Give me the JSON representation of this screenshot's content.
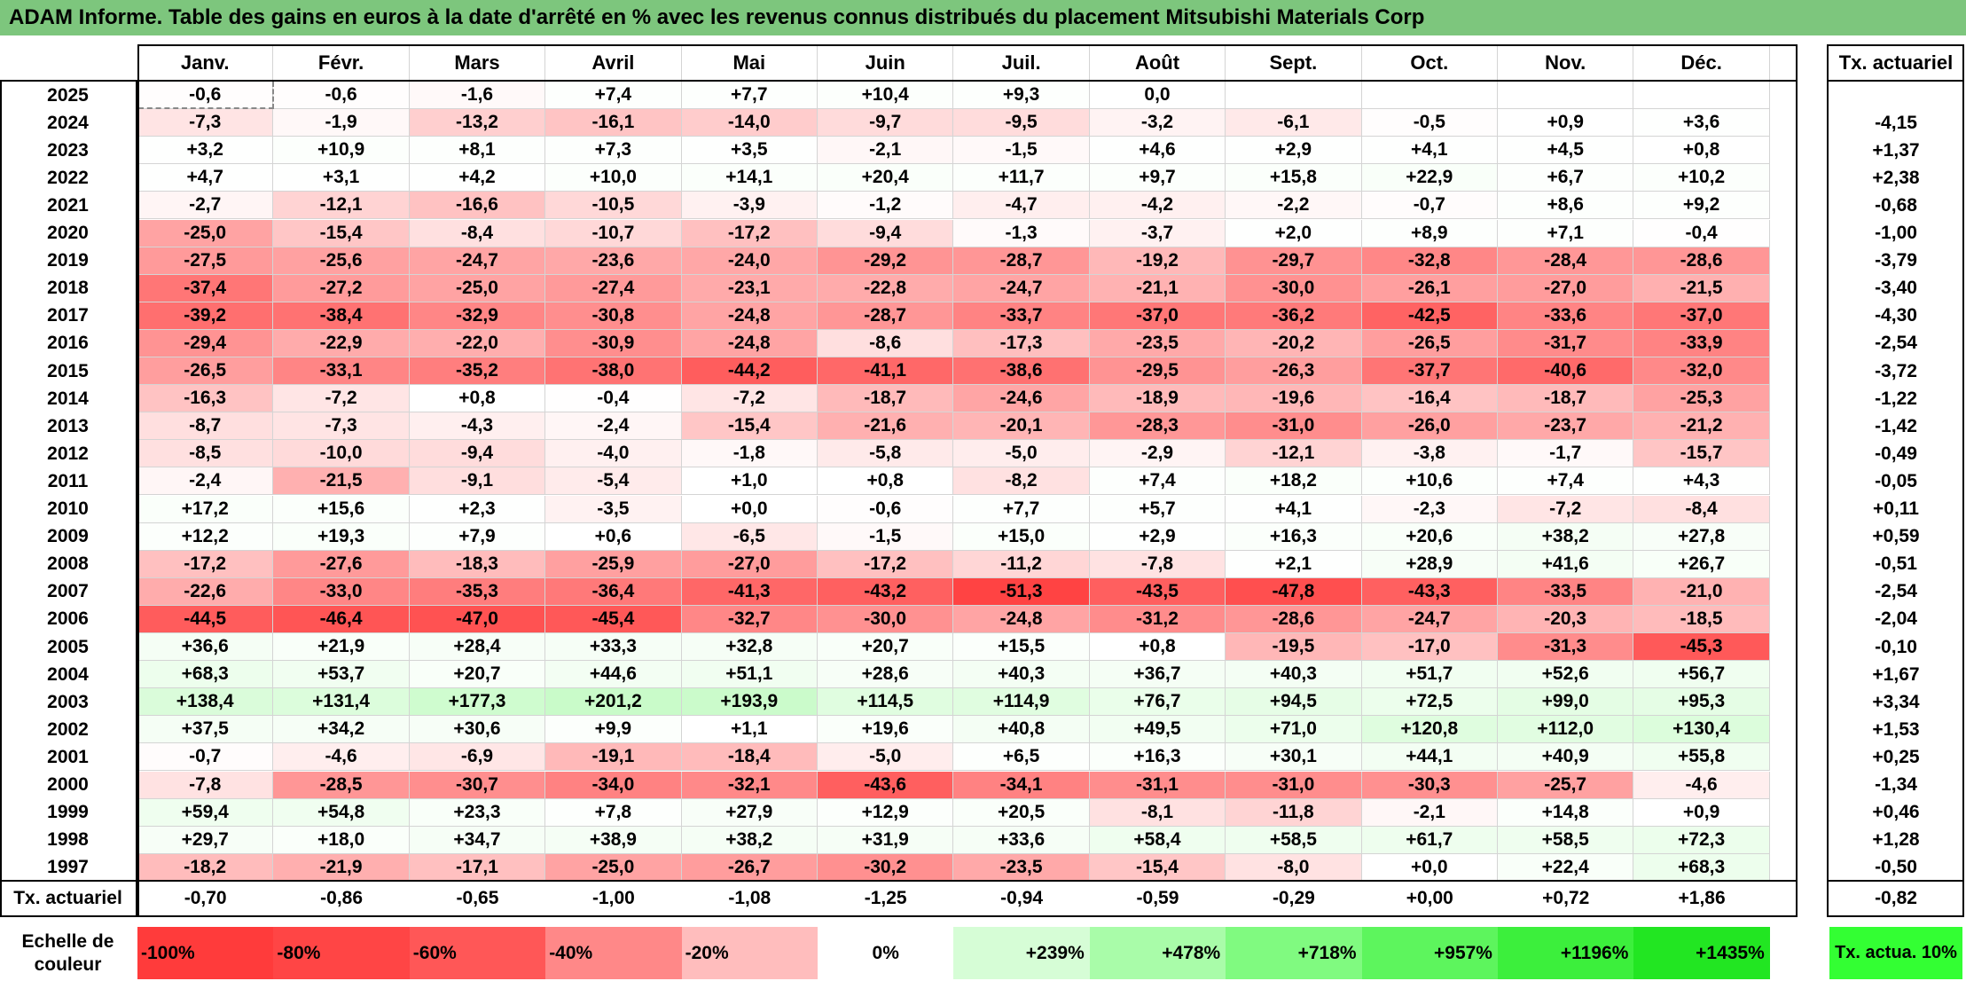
{
  "title": "ADAM Informe. Table des gains en euros à la date d'arrêté en % avec les revenus connus distribués du placement Mitsubishi Materials Corp",
  "months": [
    "Janv.",
    "Févr.",
    "Mars",
    "Avril",
    "Mai",
    "Juin",
    "Juil.",
    "Août",
    "Sept.",
    "Oct.",
    "Nov.",
    "Déc."
  ],
  "annual_header": "Tx. actuariel",
  "rows": [
    {
      "year": "2025",
      "values": [
        "-0,6",
        "-0,6",
        "-1,6",
        "+7,4",
        "+7,7",
        "+10,4",
        "+9,3",
        "0,0",
        "",
        "",
        "",
        ""
      ],
      "annual": ""
    },
    {
      "year": "2024",
      "values": [
        "-7,3",
        "-1,9",
        "-13,2",
        "-16,1",
        "-14,0",
        "-9,7",
        "-9,5",
        "-3,2",
        "-6,1",
        "-0,5",
        "+0,9",
        "+3,6"
      ],
      "annual": "-4,15"
    },
    {
      "year": "2023",
      "values": [
        "+3,2",
        "+10,9",
        "+8,1",
        "+7,3",
        "+3,5",
        "-2,1",
        "-1,5",
        "+4,6",
        "+2,9",
        "+4,1",
        "+4,5",
        "+0,8"
      ],
      "annual": "+1,37"
    },
    {
      "year": "2022",
      "values": [
        "+4,7",
        "+3,1",
        "+4,2",
        "+10,0",
        "+14,1",
        "+20,4",
        "+11,7",
        "+9,7",
        "+15,8",
        "+22,9",
        "+6,7",
        "+10,2"
      ],
      "annual": "+2,38"
    },
    {
      "year": "2021",
      "values": [
        "-2,7",
        "-12,1",
        "-16,6",
        "-10,5",
        "-3,9",
        "-1,2",
        "-4,7",
        "-4,2",
        "-2,2",
        "-0,7",
        "+8,6",
        "+9,2"
      ],
      "annual": "-0,68"
    },
    {
      "year": "2020",
      "values": [
        "-25,0",
        "-15,4",
        "-8,4",
        "-10,7",
        "-17,2",
        "-9,4",
        "-1,3",
        "-3,7",
        "+2,0",
        "+8,9",
        "+7,1",
        "-0,4"
      ],
      "annual": "-1,00"
    },
    {
      "year": "2019",
      "values": [
        "-27,5",
        "-25,6",
        "-24,7",
        "-23,6",
        "-24,0",
        "-29,2",
        "-28,7",
        "-19,2",
        "-29,7",
        "-32,8",
        "-28,4",
        "-28,6"
      ],
      "annual": "-3,79"
    },
    {
      "year": "2018",
      "values": [
        "-37,4",
        "-27,2",
        "-25,0",
        "-27,4",
        "-23,1",
        "-22,8",
        "-24,7",
        "-21,1",
        "-30,0",
        "-26,1",
        "-27,0",
        "-21,5"
      ],
      "annual": "-3,40"
    },
    {
      "year": "2017",
      "values": [
        "-39,2",
        "-38,4",
        "-32,9",
        "-30,8",
        "-24,8",
        "-28,7",
        "-33,7",
        "-37,0",
        "-36,2",
        "-42,5",
        "-33,6",
        "-37,0"
      ],
      "annual": "-4,30"
    },
    {
      "year": "2016",
      "values": [
        "-29,4",
        "-22,9",
        "-22,0",
        "-30,9",
        "-24,8",
        "-8,6",
        "-17,3",
        "-23,5",
        "-20,2",
        "-26,5",
        "-31,7",
        "-33,9"
      ],
      "annual": "-2,54"
    },
    {
      "year": "2015",
      "values": [
        "-26,5",
        "-33,1",
        "-35,2",
        "-38,0",
        "-44,2",
        "-41,1",
        "-38,6",
        "-29,5",
        "-26,3",
        "-37,7",
        "-40,6",
        "-32,0"
      ],
      "annual": "-3,72"
    },
    {
      "year": "2014",
      "values": [
        "-16,3",
        "-7,2",
        "+0,8",
        "-0,4",
        "-7,2",
        "-18,7",
        "-24,6",
        "-18,9",
        "-19,6",
        "-16,4",
        "-18,7",
        "-25,3"
      ],
      "annual": "-1,22"
    },
    {
      "year": "2013",
      "values": [
        "-8,7",
        "-7,3",
        "-4,3",
        "-2,4",
        "-15,4",
        "-21,6",
        "-20,1",
        "-28,3",
        "-31,0",
        "-26,0",
        "-23,7",
        "-21,2"
      ],
      "annual": "-1,42"
    },
    {
      "year": "2012",
      "values": [
        "-8,5",
        "-10,0",
        "-9,4",
        "-4,0",
        "-1,8",
        "-5,8",
        "-5,0",
        "-2,9",
        "-12,1",
        "-3,8",
        "-1,7",
        "-15,7"
      ],
      "annual": "-0,49"
    },
    {
      "year": "2011",
      "values": [
        "-2,4",
        "-21,5",
        "-9,1",
        "-5,4",
        "+1,0",
        "+0,8",
        "-8,2",
        "+7,4",
        "+18,2",
        "+10,6",
        "+7,4",
        "+4,3"
      ],
      "annual": "-0,05"
    },
    {
      "year": "2010",
      "values": [
        "+17,2",
        "+15,6",
        "+2,3",
        "-3,5",
        "+0,0",
        "-0,6",
        "+7,7",
        "+5,7",
        "+4,1",
        "-2,3",
        "-7,2",
        "-8,4"
      ],
      "annual": "+0,11"
    },
    {
      "year": "2009",
      "values": [
        "+12,2",
        "+19,3",
        "+7,9",
        "+0,6",
        "-6,5",
        "-1,5",
        "+15,0",
        "+2,9",
        "+16,3",
        "+20,6",
        "+38,2",
        "+27,8"
      ],
      "annual": "+0,59"
    },
    {
      "year": "2008",
      "values": [
        "-17,2",
        "-27,6",
        "-18,3",
        "-25,9",
        "-27,0",
        "-17,2",
        "-11,2",
        "-7,8",
        "+2,1",
        "+28,9",
        "+41,6",
        "+26,7"
      ],
      "annual": "-0,51"
    },
    {
      "year": "2007",
      "values": [
        "-22,6",
        "-33,0",
        "-35,3",
        "-36,4",
        "-41,3",
        "-43,2",
        "-51,3",
        "-43,5",
        "-47,8",
        "-43,3",
        "-33,5",
        "-21,0"
      ],
      "annual": "-2,54"
    },
    {
      "year": "2006",
      "values": [
        "-44,5",
        "-46,4",
        "-47,0",
        "-45,4",
        "-32,7",
        "-30,0",
        "-24,8",
        "-31,2",
        "-28,6",
        "-24,7",
        "-20,3",
        "-18,5"
      ],
      "annual": "-2,04"
    },
    {
      "year": "2005",
      "values": [
        "+36,6",
        "+21,9",
        "+28,4",
        "+33,3",
        "+32,8",
        "+20,7",
        "+15,5",
        "+0,8",
        "-19,5",
        "-17,0",
        "-31,3",
        "-45,3"
      ],
      "annual": "-0,10"
    },
    {
      "year": "2004",
      "values": [
        "+68,3",
        "+53,7",
        "+20,7",
        "+44,6",
        "+51,1",
        "+28,6",
        "+40,3",
        "+36,7",
        "+40,3",
        "+51,7",
        "+52,6",
        "+56,7"
      ],
      "annual": "+1,67"
    },
    {
      "year": "2003",
      "values": [
        "+138,4",
        "+131,4",
        "+177,3",
        "+201,2",
        "+193,9",
        "+114,5",
        "+114,9",
        "+76,7",
        "+94,5",
        "+72,5",
        "+99,0",
        "+95,3"
      ],
      "annual": "+3,34"
    },
    {
      "year": "2002",
      "values": [
        "+37,5",
        "+34,2",
        "+30,6",
        "+9,9",
        "+1,1",
        "+19,6",
        "+40,8",
        "+49,5",
        "+71,0",
        "+120,8",
        "+112,0",
        "+130,4"
      ],
      "annual": "+1,53"
    },
    {
      "year": "2001",
      "values": [
        "-0,7",
        "-4,6",
        "-6,9",
        "-19,1",
        "-18,4",
        "-5,0",
        "+6,5",
        "+16,3",
        "+30,1",
        "+44,1",
        "+40,9",
        "+55,8"
      ],
      "annual": "+0,25"
    },
    {
      "year": "2000",
      "values": [
        "-7,8",
        "-28,5",
        "-30,7",
        "-34,0",
        "-32,1",
        "-43,6",
        "-34,1",
        "-31,1",
        "-31,0",
        "-30,3",
        "-25,7",
        "-4,6"
      ],
      "annual": "-1,34"
    },
    {
      "year": "1999",
      "values": [
        "+59,4",
        "+54,8",
        "+23,3",
        "+7,8",
        "+27,9",
        "+12,9",
        "+20,5",
        "-8,1",
        "-11,8",
        "-2,1",
        "+14,8",
        "+0,9"
      ],
      "annual": "+0,46"
    },
    {
      "year": "1998",
      "values": [
        "+29,7",
        "+18,0",
        "+34,7",
        "+38,9",
        "+38,2",
        "+31,9",
        "+33,6",
        "+58,4",
        "+58,5",
        "+61,7",
        "+58,5",
        "+72,3"
      ],
      "annual": "+1,28"
    },
    {
      "year": "1997",
      "values": [
        "-18,2",
        "-21,9",
        "-17,1",
        "-25,0",
        "-26,7",
        "-30,2",
        "-23,5",
        "-15,4",
        "-8,0",
        "+0,0",
        "+22,4",
        "+68,3"
      ],
      "annual": "-0,50"
    }
  ],
  "footer": {
    "label": "Tx. actuariel",
    "values": [
      "-0,70",
      "-0,86",
      "-0,65",
      "-1,00",
      "-1,08",
      "-1,25",
      "-0,94",
      "-0,59",
      "-0,29",
      "+0,00",
      "+0,72",
      "+1,86"
    ],
    "annual": "-0,82"
  },
  "legend": {
    "label": "Echelle de couleur",
    "items": [
      {
        "text": "-100%",
        "color": "#ff3b3b"
      },
      {
        "text": "-80%",
        "color": "#ff4545"
      },
      {
        "text": "-60%",
        "color": "#ff5757"
      },
      {
        "text": "-40%",
        "color": "#ff8888"
      },
      {
        "text": "-20%",
        "color": "#ffbdbd"
      },
      {
        "text": "0%",
        "color": "#ffffff"
      },
      {
        "text": "+239%",
        "color": "#d6fdd6"
      },
      {
        "text": "+478%",
        "color": "#a9fca9"
      },
      {
        "text": "+718%",
        "color": "#80fa80"
      },
      {
        "text": "+957%",
        "color": "#5df55d"
      },
      {
        "text": "+1196%",
        "color": "#3cef3c"
      },
      {
        "text": "+1435%",
        "color": "#22e622"
      }
    ],
    "side_label": "Tx. actua. 10%",
    "side_color": "#33ff33"
  },
  "colors": {
    "title_bg": "#7dc67d",
    "negative": "#ff0000",
    "positive": "#00dd00"
  }
}
